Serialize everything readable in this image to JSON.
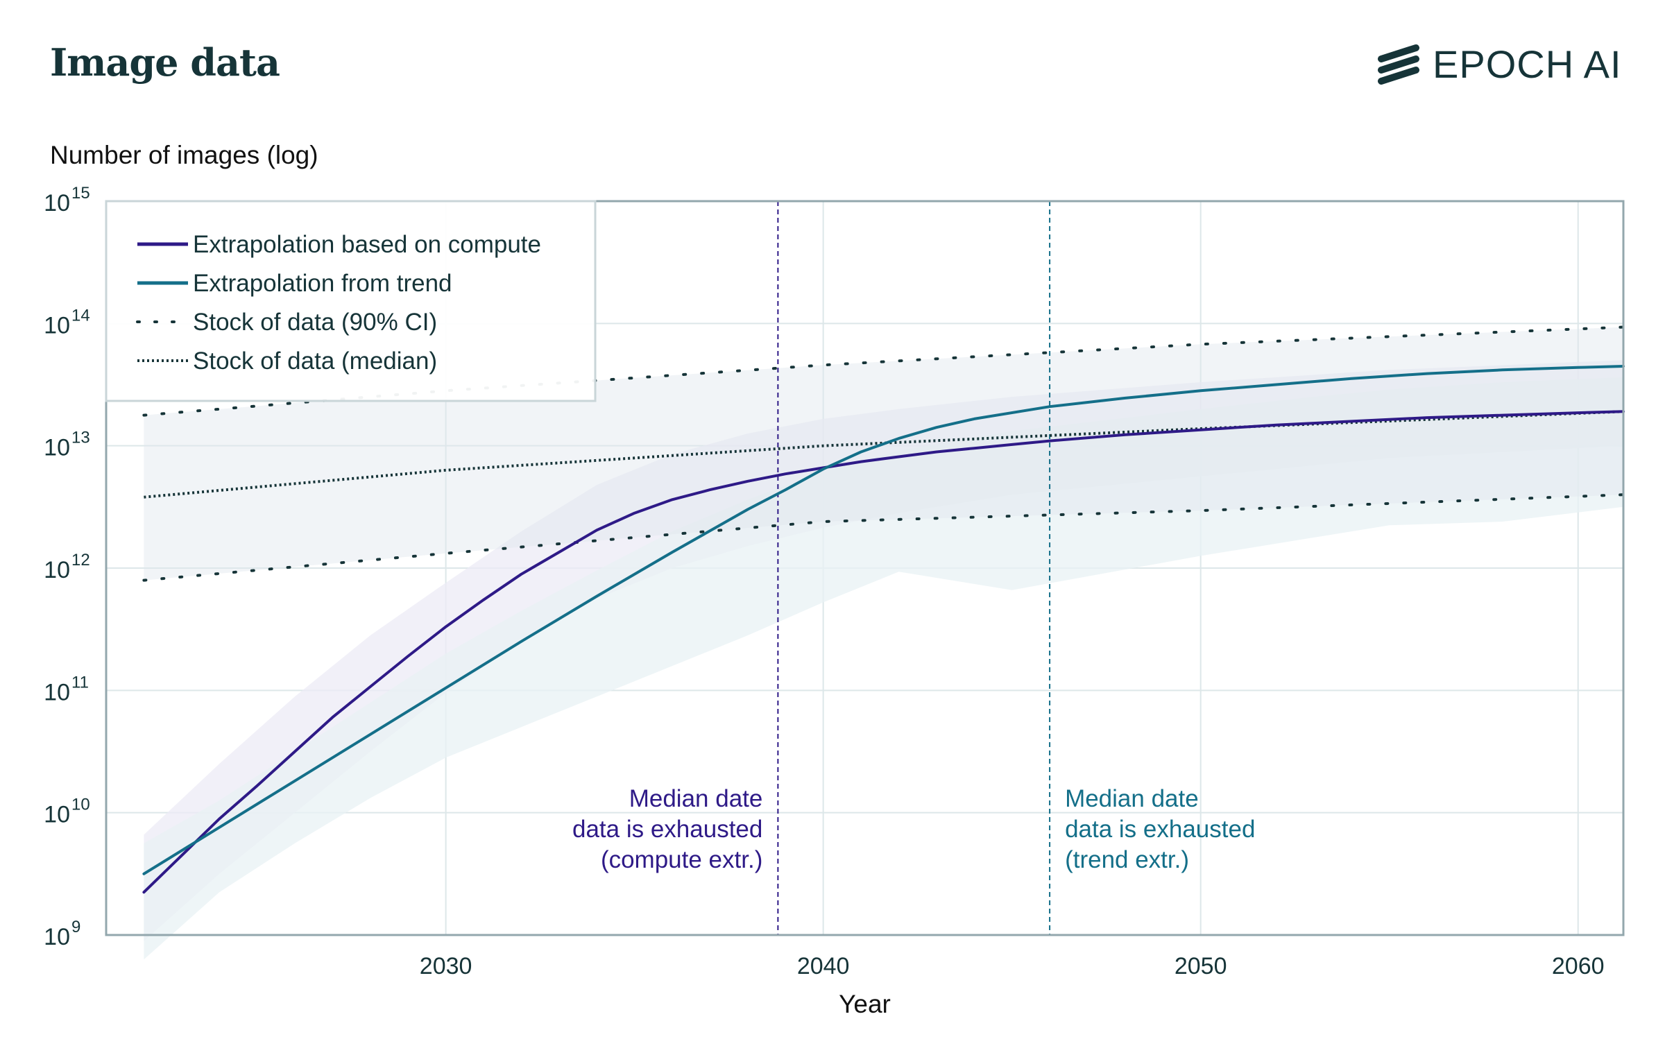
{
  "title": "Image data",
  "brand": "EPOCH AI",
  "colors": {
    "compute": "#2e1a87",
    "trend": "#146f89",
    "text": "#163438",
    "axis": "#93a7ad",
    "grid": "#dde7e9",
    "band_compute": "#ecebf5",
    "band_trend": "#e8f1f4",
    "band_stock": "#dfe6ee"
  },
  "chart_data": {
    "type": "line",
    "title": "Image data",
    "ylabel": "Number of images (log)",
    "xlabel": "Year",
    "y_scale": "log10",
    "xlim": [
      2021,
      2061.2
    ],
    "ylim_exp": [
      9,
      15
    ],
    "x_ticks": [
      2030,
      2040,
      2050,
      2060
    ],
    "x_tick_labels": [
      "2030",
      "2040",
      "2050",
      "2060"
    ],
    "y_tick_exponents": [
      9,
      10,
      11,
      12,
      13,
      14,
      15
    ],
    "y_tick_base": "10",
    "grid": true,
    "legend_position": "top-left",
    "legend": [
      {
        "label": "Extrapolation based on compute",
        "style": "solid",
        "color_key": "compute"
      },
      {
        "label": "Extrapolation from trend",
        "style": "solid",
        "color_key": "trend"
      },
      {
        "label": "Stock of data (90% CI)",
        "style": "sparse-dotted",
        "color_key": "text"
      },
      {
        "label": "Stock of data (median)",
        "style": "dense-dotted",
        "color_key": "text"
      }
    ],
    "series": [
      {
        "name": "Extrapolation based on compute",
        "color_key": "compute",
        "x": [
          2022,
          2023,
          2024,
          2025,
          2026,
          2027,
          2028,
          2029,
          2030,
          2031,
          2032,
          2033,
          2034,
          2035,
          2036,
          2037,
          2038,
          2039,
          2040,
          2041,
          2042,
          2043,
          2044,
          2045,
          2046,
          2048,
          2050,
          2052,
          2054,
          2056,
          2058,
          2060,
          2061.2
        ],
        "y_exp": [
          9.35,
          9.65,
          9.95,
          10.22,
          10.5,
          10.78,
          11.03,
          11.28,
          11.52,
          11.74,
          11.95,
          12.13,
          12.31,
          12.45,
          12.56,
          12.64,
          12.71,
          12.77,
          12.82,
          12.87,
          12.91,
          12.95,
          12.98,
          13.01,
          13.04,
          13.09,
          13.13,
          13.17,
          13.2,
          13.23,
          13.25,
          13.27,
          13.28
        ]
      },
      {
        "name": "Extrapolation from trend",
        "color_key": "trend",
        "x": [
          2022,
          2024,
          2026,
          2028,
          2030,
          2032,
          2034,
          2036,
          2038,
          2039,
          2040,
          2041,
          2042,
          2043,
          2044,
          2046,
          2048,
          2050,
          2052,
          2054,
          2056,
          2058,
          2060,
          2061.2
        ],
        "y_exp": [
          9.5,
          9.88,
          10.26,
          10.64,
          11.02,
          11.4,
          11.77,
          12.13,
          12.48,
          12.64,
          12.81,
          12.95,
          13.06,
          13.15,
          13.22,
          13.32,
          13.39,
          13.45,
          13.5,
          13.55,
          13.59,
          13.62,
          13.64,
          13.65
        ]
      }
    ],
    "stock_median": {
      "name": "Stock of data (median)",
      "x": [
        2022,
        2030,
        2040,
        2050,
        2061.2
      ],
      "y_exp": [
        12.58,
        12.8,
        13.0,
        13.14,
        13.28
      ]
    },
    "stock_ci_upper": {
      "name": "Stock of data (90% CI)",
      "x": [
        2022,
        2030,
        2040,
        2050,
        2061.2
      ],
      "y_exp": [
        13.25,
        13.45,
        13.66,
        13.83,
        13.97
      ]
    },
    "stock_ci_lower": {
      "name": "Stock of data (90% CI)",
      "x": [
        2022,
        2030,
        2040,
        2050,
        2061.2
      ],
      "y_exp": [
        11.9,
        12.12,
        12.38,
        12.47,
        12.6
      ]
    },
    "band_compute": {
      "x": [
        2022,
        2024,
        2026,
        2028,
        2030,
        2032,
        2034,
        2036,
        2038,
        2040,
        2042,
        2045,
        2050,
        2055,
        2061.2
      ],
      "upper": [
        9.82,
        10.4,
        10.95,
        11.45,
        11.88,
        12.3,
        12.68,
        12.93,
        13.1,
        13.22,
        13.3,
        13.4,
        13.52,
        13.62,
        13.7
      ],
      "lower": [
        8.95,
        9.5,
        10.0,
        10.5,
        10.98,
        11.4,
        11.75,
        12.0,
        12.18,
        12.33,
        12.45,
        12.6,
        12.75,
        12.9,
        13.0
      ]
    },
    "band_trend": {
      "x": [
        2022,
        2024,
        2026,
        2028,
        2030,
        2032,
        2034,
        2036,
        2038,
        2040,
        2042,
        2045,
        2050,
        2053,
        2055,
        2058,
        2061.2
      ],
      "upper": [
        9.75,
        10.1,
        10.5,
        10.9,
        11.3,
        11.65,
        11.98,
        12.3,
        12.56,
        12.79,
        12.96,
        13.12,
        13.3,
        13.4,
        13.46,
        13.52,
        13.56
      ],
      "lower": [
        8.8,
        9.35,
        9.75,
        10.12,
        10.45,
        10.7,
        10.95,
        11.2,
        11.45,
        11.72,
        11.97,
        11.82,
        12.1,
        12.25,
        12.35,
        12.38,
        12.5
      ]
    },
    "vlines": [
      {
        "x": 2038.8,
        "color_key": "compute",
        "label": [
          "Median date",
          "data is exhausted",
          "(compute extr.)"
        ],
        "align": "right"
      },
      {
        "x": 2046.0,
        "color_key": "trend",
        "label": [
          "Median date",
          "data is exhausted",
          "(trend extr.)"
        ],
        "align": "left"
      }
    ]
  }
}
